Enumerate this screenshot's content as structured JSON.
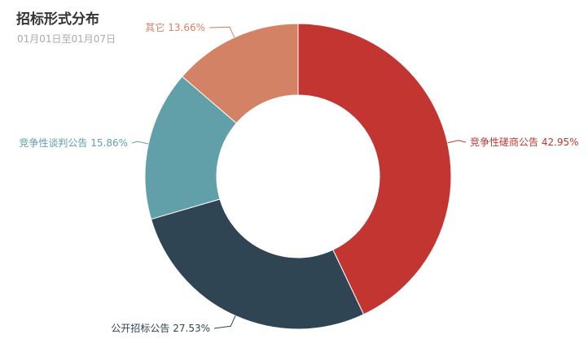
{
  "header": {
    "title": "招标形式分布",
    "subtitle": "01月01日至01月07日"
  },
  "chart_data": {
    "type": "pie",
    "variant": "donut",
    "title": "招标形式分布",
    "subtitle": "01月01日至01月07日",
    "start": "12 o'clock",
    "direction": "clockwise",
    "slices": [
      {
        "name": "竞争性磋商公告",
        "value": 42.95,
        "label": "竞争性磋商公告 42.95%",
        "color": "#c23531"
      },
      {
        "name": "公开招标公告",
        "value": 27.53,
        "label": "公开招标公告 27.53%",
        "color": "#2f4554"
      },
      {
        "name": "竞争性谈判公告",
        "value": 15.86,
        "label": "竞争性谈判公告 15.86%",
        "color": "#61a0a8"
      },
      {
        "name": "其它",
        "value": 13.66,
        "label": "其它 13.66%",
        "color": "#d48265"
      }
    ]
  }
}
